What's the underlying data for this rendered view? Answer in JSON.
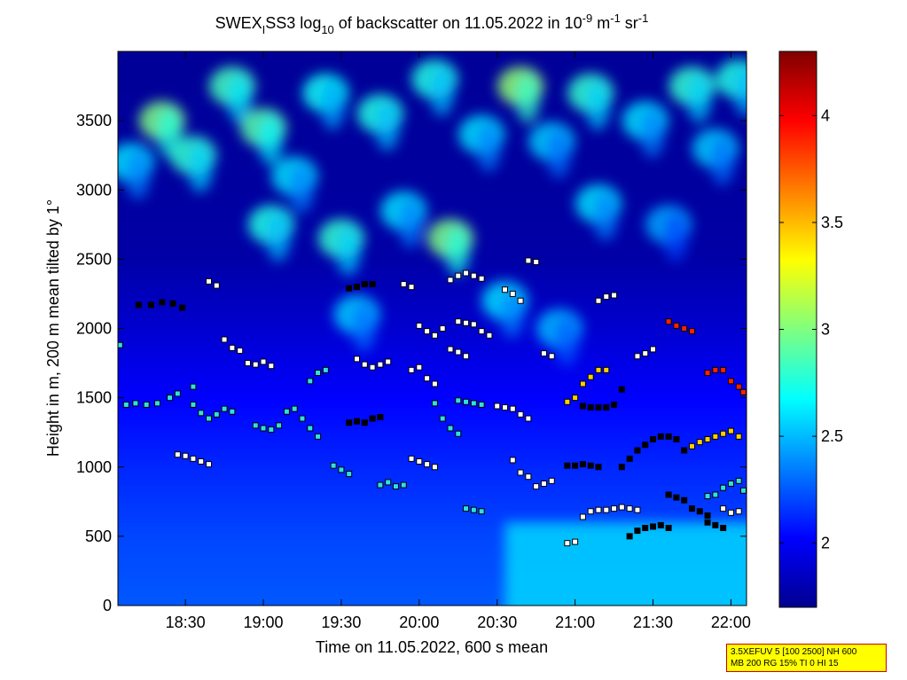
{
  "chart_data": {
    "type": "heatmap",
    "title_parts": {
      "a": "SWEX",
      "sub1": "I",
      "b": "SS3 log",
      "sub2": "10",
      "c": " of backscatter on 11.05.2022 in 10",
      "sup1": "-9",
      "d": " m",
      "sup2": "-1",
      "e": " sr",
      "sup3": "-1"
    },
    "xlabel": "Time on 11.05.2022, 600 s mean",
    "ylabel": "Height in m, 200 m mean tilted by 1°",
    "x_range_hours": [
      18.067,
      22.1
    ],
    "x_ticks": [
      {
        "value": 18.5,
        "label": "18:30"
      },
      {
        "value": 19.0,
        "label": "19:00"
      },
      {
        "value": 19.5,
        "label": "19:30"
      },
      {
        "value": 20.0,
        "label": "20:00"
      },
      {
        "value": 20.5,
        "label": "20:30"
      },
      {
        "value": 21.0,
        "label": "21:00"
      },
      {
        "value": 21.5,
        "label": "21:30"
      },
      {
        "value": 22.0,
        "label": "22:00"
      }
    ],
    "y_range": [
      0,
      4000
    ],
    "y_ticks": [
      0,
      500,
      1000,
      1500,
      2000,
      2500,
      3000,
      3500
    ],
    "colorbar": {
      "range": [
        1.7,
        4.3
      ],
      "ticks": [
        2,
        2.5,
        3,
        3.5,
        4
      ],
      "colormap": "jet"
    },
    "background_profile": [
      {
        "h": 0,
        "v": 2.25
      },
      {
        "h": 500,
        "v": 2.2
      },
      {
        "h": 1000,
        "v": 2.12
      },
      {
        "h": 1500,
        "v": 2.02
      },
      {
        "h": 2000,
        "v": 1.9
      },
      {
        "h": 2500,
        "v": 1.8
      },
      {
        "h": 3000,
        "v": 1.78
      },
      {
        "h": 4000,
        "v": 1.76
      }
    ],
    "cloud_patches": [
      {
        "t": 18.35,
        "h": 3500,
        "v": 3.0
      },
      {
        "t": 18.55,
        "h": 3250,
        "v": 2.8
      },
      {
        "t": 18.15,
        "h": 3200,
        "v": 2.6
      },
      {
        "t": 18.8,
        "h": 3750,
        "v": 2.85
      },
      {
        "t": 19.0,
        "h": 3450,
        "v": 2.9
      },
      {
        "t": 19.2,
        "h": 3100,
        "v": 2.6
      },
      {
        "t": 19.05,
        "h": 2750,
        "v": 2.75
      },
      {
        "t": 19.4,
        "h": 3700,
        "v": 2.7
      },
      {
        "t": 19.5,
        "h": 2650,
        "v": 2.8
      },
      {
        "t": 19.75,
        "h": 3550,
        "v": 2.75
      },
      {
        "t": 19.9,
        "h": 2850,
        "v": 2.6
      },
      {
        "t": 20.1,
        "h": 3800,
        "v": 2.75
      },
      {
        "t": 20.2,
        "h": 2650,
        "v": 3.0
      },
      {
        "t": 20.4,
        "h": 3400,
        "v": 2.6
      },
      {
        "t": 20.65,
        "h": 3750,
        "v": 3.05
      },
      {
        "t": 20.85,
        "h": 3350,
        "v": 2.55
      },
      {
        "t": 21.1,
        "h": 3700,
        "v": 2.8
      },
      {
        "t": 21.15,
        "h": 2900,
        "v": 2.6
      },
      {
        "t": 21.45,
        "h": 3500,
        "v": 2.6
      },
      {
        "t": 21.75,
        "h": 3750,
        "v": 2.8
      },
      {
        "t": 21.9,
        "h": 3300,
        "v": 2.55
      },
      {
        "t": 22.05,
        "h": 3800,
        "v": 2.75
      },
      {
        "t": 21.6,
        "h": 2750,
        "v": 2.45
      },
      {
        "t": 20.55,
        "h": 2200,
        "v": 2.6
      },
      {
        "t": 19.6,
        "h": 2100,
        "v": 2.55
      },
      {
        "t": 20.9,
        "h": 2000,
        "v": 2.5
      }
    ],
    "cyan_region": {
      "t_start": 20.55,
      "h_top": 600,
      "v": 2.55
    },
    "marker_tracks": [
      {
        "pts": [
          [
            18.08,
            1880
          ],
          [
            18.12,
            1450
          ],
          [
            18.18,
            1460
          ],
          [
            18.25,
            1450
          ],
          [
            18.32,
            1460
          ],
          [
            18.4,
            1500
          ],
          [
            18.45,
            1530
          ],
          [
            18.55,
            1580
          ]
        ],
        "c": "#30e0e0"
      },
      {
        "pts": [
          [
            18.2,
            2170
          ],
          [
            18.28,
            2170
          ],
          [
            18.35,
            2190
          ],
          [
            18.42,
            2180
          ],
          [
            18.48,
            2150
          ]
        ],
        "c": "#000000"
      },
      {
        "pts": [
          [
            18.55,
            1450
          ],
          [
            18.6,
            1390
          ],
          [
            18.65,
            1350
          ],
          [
            18.7,
            1380
          ],
          [
            18.75,
            1420
          ],
          [
            18.8,
            1400
          ]
        ],
        "c": "#30e0e0"
      },
      {
        "pts": [
          [
            18.45,
            1090
          ],
          [
            18.5,
            1080
          ],
          [
            18.55,
            1060
          ],
          [
            18.6,
            1040
          ],
          [
            18.65,
            1020
          ]
        ],
        "c": "#ffffff"
      },
      {
        "pts": [
          [
            18.65,
            2340
          ],
          [
            18.7,
            2310
          ],
          [
            18.75,
            1920
          ],
          [
            18.8,
            1860
          ],
          [
            18.85,
            1840
          ]
        ],
        "c": "#ffffff"
      },
      {
        "pts": [
          [
            18.9,
            1750
          ],
          [
            18.95,
            1740
          ],
          [
            19.0,
            1760
          ],
          [
            19.05,
            1730
          ]
        ],
        "c": "#ffffff"
      },
      {
        "pts": [
          [
            18.95,
            1300
          ],
          [
            19.0,
            1280
          ],
          [
            19.05,
            1270
          ],
          [
            19.1,
            1300
          ],
          [
            19.15,
            1400
          ],
          [
            19.2,
            1420
          ],
          [
            19.25,
            1350
          ],
          [
            19.3,
            1280
          ],
          [
            19.35,
            1220
          ]
        ],
        "c": "#30e0e0"
      },
      {
        "pts": [
          [
            19.3,
            1620
          ],
          [
            19.35,
            1680
          ],
          [
            19.4,
            1700
          ]
        ],
        "c": "#30e0e0"
      },
      {
        "pts": [
          [
            19.55,
            2290
          ],
          [
            19.6,
            2300
          ],
          [
            19.65,
            2320
          ],
          [
            19.7,
            2320
          ]
        ],
        "c": "#000000"
      },
      {
        "pts": [
          [
            19.6,
            1780
          ],
          [
            19.65,
            1740
          ],
          [
            19.7,
            1720
          ],
          [
            19.75,
            1740
          ],
          [
            19.8,
            1760
          ]
        ],
        "c": "#ffffff"
      },
      {
        "pts": [
          [
            19.55,
            1320
          ],
          [
            19.6,
            1330
          ],
          [
            19.65,
            1320
          ],
          [
            19.7,
            1350
          ],
          [
            19.75,
            1360
          ]
        ],
        "c": "#000000"
      },
      {
        "pts": [
          [
            19.45,
            1010
          ],
          [
            19.5,
            980
          ],
          [
            19.55,
            950
          ]
        ],
        "c": "#30e0e0"
      },
      {
        "pts": [
          [
            19.75,
            870
          ],
          [
            19.8,
            890
          ],
          [
            19.85,
            860
          ],
          [
            19.9,
            870
          ]
        ],
        "c": "#30e0e0"
      },
      {
        "pts": [
          [
            19.9,
            2320
          ],
          [
            19.95,
            2300
          ],
          [
            20.0,
            2020
          ],
          [
            20.05,
            1980
          ],
          [
            20.1,
            1950
          ],
          [
            20.15,
            2000
          ]
        ],
        "c": "#ffffff"
      },
      {
        "pts": [
          [
            19.95,
            1700
          ],
          [
            20.0,
            1720
          ],
          [
            20.05,
            1640
          ],
          [
            20.1,
            1600
          ]
        ],
        "c": "#ffffff"
      },
      {
        "pts": [
          [
            19.95,
            1060
          ],
          [
            20.0,
            1040
          ],
          [
            20.05,
            1020
          ],
          [
            20.1,
            1000
          ]
        ],
        "c": "#ffffff"
      },
      {
        "pts": [
          [
            20.1,
            1460
          ],
          [
            20.15,
            1350
          ],
          [
            20.2,
            1280
          ],
          [
            20.25,
            1240
          ]
        ],
        "c": "#30e0e0"
      },
      {
        "pts": [
          [
            20.2,
            2350
          ],
          [
            20.25,
            2380
          ],
          [
            20.3,
            2400
          ],
          [
            20.35,
            2380
          ],
          [
            20.4,
            2360
          ]
        ],
        "c": "#ffffff"
      },
      {
        "pts": [
          [
            20.25,
            2050
          ],
          [
            20.3,
            2040
          ],
          [
            20.35,
            2030
          ],
          [
            20.4,
            1980
          ],
          [
            20.45,
            1950
          ]
        ],
        "c": "#ffffff"
      },
      {
        "pts": [
          [
            20.25,
            1480
          ],
          [
            20.3,
            1470
          ],
          [
            20.35,
            1460
          ],
          [
            20.4,
            1450
          ]
        ],
        "c": "#30e0e0"
      },
      {
        "pts": [
          [
            20.2,
            1850
          ],
          [
            20.25,
            1830
          ],
          [
            20.3,
            1800
          ]
        ],
        "c": "#ffffff"
      },
      {
        "pts": [
          [
            20.3,
            700
          ],
          [
            20.35,
            690
          ],
          [
            20.4,
            680
          ]
        ],
        "c": "#30e0e0"
      },
      {
        "pts": [
          [
            20.5,
            1440
          ],
          [
            20.55,
            1430
          ],
          [
            20.6,
            1420
          ],
          [
            20.65,
            1380
          ],
          [
            20.7,
            1350
          ]
        ],
        "c": "#ffffff"
      },
      {
        "pts": [
          [
            20.55,
            2280
          ],
          [
            20.6,
            2250
          ],
          [
            20.65,
            2200
          ]
        ],
        "c": "#ffffff"
      },
      {
        "pts": [
          [
            20.6,
            1050
          ],
          [
            20.65,
            960
          ],
          [
            20.7,
            930
          ],
          [
            20.75,
            860
          ],
          [
            20.8,
            880
          ],
          [
            20.85,
            900
          ]
        ],
        "c": "#ffffff"
      },
      {
        "pts": [
          [
            20.7,
            2490
          ],
          [
            20.75,
            2480
          ],
          [
            20.8,
            1820
          ],
          [
            20.85,
            1800
          ]
        ],
        "c": "#ffffff"
      },
      {
        "pts": [
          [
            20.95,
            1470
          ],
          [
            21.0,
            1500
          ],
          [
            21.05,
            1600
          ],
          [
            21.1,
            1650
          ],
          [
            21.15,
            1700
          ],
          [
            21.2,
            1700
          ]
        ],
        "c": "#ffd000"
      },
      {
        "pts": [
          [
            20.95,
            1010
          ],
          [
            21.0,
            1010
          ],
          [
            21.05,
            1020
          ],
          [
            21.1,
            1010
          ],
          [
            21.15,
            1000
          ]
        ],
        "c": "#000000"
      },
      {
        "pts": [
          [
            21.05,
            1440
          ],
          [
            21.1,
            1430
          ],
          [
            21.15,
            1430
          ],
          [
            21.2,
            1430
          ],
          [
            21.25,
            1450
          ],
          [
            21.3,
            1560
          ]
        ],
        "c": "#000000"
      },
      {
        "pts": [
          [
            21.15,
            2200
          ],
          [
            21.2,
            2230
          ],
          [
            21.25,
            2240
          ]
        ],
        "c": "#ffffff"
      },
      {
        "pts": [
          [
            20.95,
            450
          ],
          [
            21.0,
            460
          ],
          [
            21.05,
            640
          ],
          [
            21.1,
            680
          ],
          [
            21.15,
            690
          ],
          [
            21.2,
            690
          ],
          [
            21.25,
            700
          ],
          [
            21.3,
            710
          ],
          [
            21.35,
            700
          ],
          [
            21.4,
            690
          ]
        ],
        "c": "#ffffff"
      },
      {
        "pts": [
          [
            21.3,
            1000
          ],
          [
            21.35,
            1060
          ],
          [
            21.4,
            1120
          ],
          [
            21.45,
            1160
          ],
          [
            21.5,
            1200
          ],
          [
            21.55,
            1220
          ],
          [
            21.6,
            1220
          ],
          [
            21.65,
            1200
          ],
          [
            21.7,
            1120
          ]
        ],
        "c": "#000000"
      },
      {
        "pts": [
          [
            21.35,
            500
          ],
          [
            21.4,
            540
          ],
          [
            21.45,
            560
          ],
          [
            21.5,
            570
          ],
          [
            21.55,
            580
          ],
          [
            21.6,
            560
          ]
        ],
        "c": "#000000"
      },
      {
        "pts": [
          [
            21.4,
            1800
          ],
          [
            21.45,
            1820
          ],
          [
            21.5,
            1850
          ]
        ],
        "c": "#ffffff"
      },
      {
        "pts": [
          [
            21.6,
            2050
          ],
          [
            21.65,
            2020
          ],
          [
            21.7,
            2000
          ],
          [
            21.75,
            1980
          ]
        ],
        "c": "#ff2000"
      },
      {
        "pts": [
          [
            21.6,
            800
          ],
          [
            21.65,
            780
          ],
          [
            21.7,
            760
          ],
          [
            21.75,
            700
          ],
          [
            21.8,
            680
          ],
          [
            21.85,
            650
          ]
        ],
        "c": "#000000"
      },
      {
        "pts": [
          [
            21.75,
            1150
          ],
          [
            21.8,
            1180
          ],
          [
            21.85,
            1200
          ],
          [
            21.9,
            1220
          ],
          [
            21.95,
            1240
          ],
          [
            22.0,
            1260
          ],
          [
            22.05,
            1220
          ]
        ],
        "c": "#ffd000"
      },
      {
        "pts": [
          [
            21.85,
            1680
          ],
          [
            21.9,
            1700
          ],
          [
            21.95,
            1700
          ],
          [
            22.0,
            1620
          ],
          [
            22.05,
            1580
          ],
          [
            22.08,
            1540
          ]
        ],
        "c": "#ff2000"
      },
      {
        "pts": [
          [
            21.85,
            600
          ],
          [
            21.9,
            580
          ],
          [
            21.95,
            560
          ]
        ],
        "c": "#000000"
      },
      {
        "pts": [
          [
            21.85,
            790
          ],
          [
            21.9,
            800
          ],
          [
            21.95,
            850
          ],
          [
            22.0,
            880
          ],
          [
            22.05,
            900
          ],
          [
            22.08,
            830
          ]
        ],
        "c": "#30e0e0"
      },
      {
        "pts": [
          [
            21.95,
            700
          ],
          [
            22.0,
            670
          ],
          [
            22.05,
            680
          ]
        ],
        "c": "#ffffff"
      }
    ]
  },
  "info_box": {
    "line1": "3.5XEFUV 5 [100 2500] NH 600",
    "line2": "MB 200 RG 15% TI 0 HI 15"
  }
}
